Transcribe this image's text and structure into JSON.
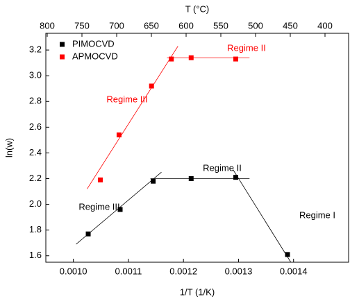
{
  "chart_data": {
    "type": "scatter",
    "xlabel": "1/T (1/K)",
    "ylabel": "ln(w)",
    "x2label": "T (°C)",
    "xlim": [
      0.00095,
      0.0015
    ],
    "xticks": [
      {
        "value": 0.001,
        "label": "0.0010"
      },
      {
        "value": 0.0011,
        "label": "0.0011"
      },
      {
        "value": 0.0012,
        "label": "0.0012"
      },
      {
        "value": 0.0013,
        "label": "0.0013"
      },
      {
        "value": 0.0014,
        "label": "0.0014"
      }
    ],
    "x2lim": [
      802,
      366
    ],
    "x2ticks": [
      800,
      750,
      700,
      650,
      600,
      550,
      500,
      450,
      400
    ],
    "ylim": [
      1.55,
      3.33
    ],
    "yticks": [
      1.6,
      1.8,
      {
        "value": 2.0,
        "label": "2.0"
      },
      2.2,
      2.4,
      2.6,
      2.8,
      {
        "value": 3.0,
        "label": "3.0"
      },
      3.2
    ],
    "legend": "upper left",
    "series": [
      {
        "name": "PIMOCVD",
        "color": "#000000",
        "x": [
          0.001027,
          0.001085,
          0.001145,
          0.001214,
          0.001295,
          0.001389
        ],
        "values": [
          1.77,
          1.96,
          2.18,
          2.2,
          2.21,
          1.61
        ]
      },
      {
        "name": "APMOCVD",
        "color": "#ff0000",
        "x": [
          0.001049,
          0.001083,
          0.001142,
          0.001178,
          0.001214,
          0.001295
        ],
        "values": [
          2.19,
          2.54,
          2.92,
          3.13,
          3.14,
          3.13
        ]
      }
    ],
    "fits": [
      {
        "color": "#ff0000",
        "x": [
          0.001025,
          0.00119
        ],
        "values": [
          2.12,
          3.23
        ]
      },
      {
        "color": "#ff0000",
        "x": [
          0.00117,
          0.00132
        ],
        "values": [
          3.14,
          3.14
        ]
      },
      {
        "color": "#000000",
        "x": [
          0.001005,
          0.00116
        ],
        "values": [
          1.69,
          2.25
        ]
      },
      {
        "color": "#000000",
        "x": [
          0.00114,
          0.00132
        ],
        "values": [
          2.2,
          2.2
        ]
      },
      {
        "color": "#000000",
        "x": [
          0.00129,
          0.001395
        ],
        "values": [
          2.27,
          1.55
        ]
      }
    ],
    "annotations": [
      {
        "text": "Regime III",
        "color": "#ff0000"
      },
      {
        "text": "Regime II",
        "color": "#ff0000"
      },
      {
        "text": "Regime II",
        "color": "#000000"
      },
      {
        "text": "Regime III",
        "color": "#000000"
      },
      {
        "text": "Regime I",
        "color": "#000000"
      }
    ]
  }
}
